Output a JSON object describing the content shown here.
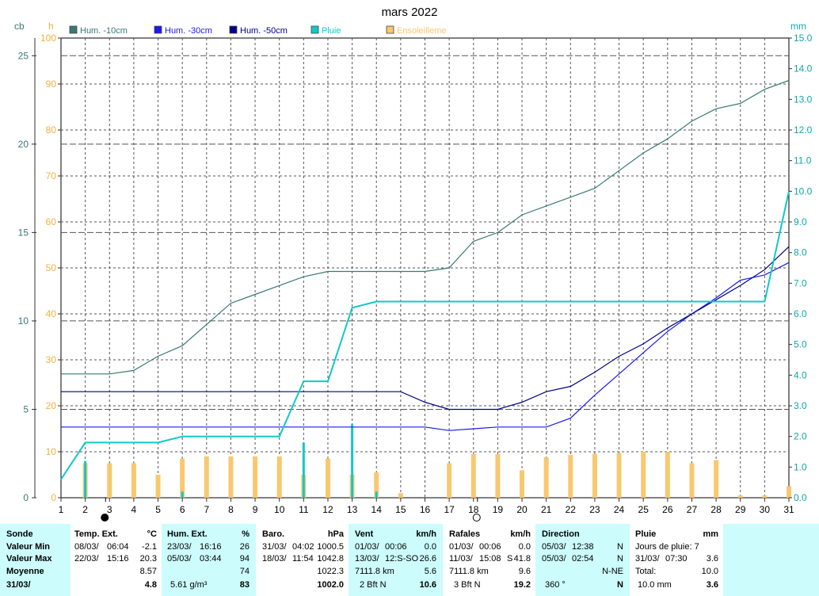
{
  "chart_data": {
    "type": "line",
    "title": "mars 2022",
    "x": [
      1,
      2,
      3,
      4,
      5,
      6,
      7,
      8,
      9,
      10,
      11,
      12,
      13,
      14,
      15,
      16,
      17,
      18,
      19,
      20,
      21,
      22,
      23,
      24,
      25,
      26,
      27,
      28,
      29,
      30,
      31
    ],
    "x_ticks": [
      "1",
      "2",
      "3",
      "4",
      "5",
      "6",
      "7",
      "8",
      "9",
      "10",
      "11",
      "12",
      "13",
      "14",
      "15",
      "16",
      "17",
      "18",
      "19",
      "20",
      "21",
      "22",
      "23",
      "24",
      "25",
      "26",
      "27",
      "28",
      "29",
      "30",
      "31"
    ],
    "left_axis_cb": {
      "label": "cb",
      "ticks": [
        "0",
        "5",
        "10",
        "15",
        "20",
        "25"
      ],
      "ylim": [
        0,
        26
      ]
    },
    "left_axis_h": {
      "label": "h",
      "ticks": [
        "0",
        "10",
        "20",
        "30",
        "40",
        "50",
        "60",
        "70",
        "80",
        "90",
        "100"
      ],
      "ylim": [
        0,
        100
      ]
    },
    "right_axis_mm": {
      "label": "mm",
      "ticks": [
        "0.0",
        "1.0",
        "2.0",
        "3.0",
        "4.0",
        "5.0",
        "6.0",
        "7.0",
        "8.0",
        "9.0",
        "10.0",
        "11.0",
        "12.0",
        "13.0",
        "14.0",
        "15.0"
      ],
      "ylim": [
        0,
        15
      ]
    },
    "series": [
      {
        "name": "Hum. -10cm",
        "axis": "cb",
        "color": "#3a7a72",
        "values": [
          7.0,
          7.0,
          7.0,
          7.2,
          8.0,
          8.6,
          9.8,
          11.0,
          11.5,
          12.0,
          12.5,
          12.8,
          12.8,
          12.8,
          12.8,
          12.8,
          13.0,
          14.5,
          15.0,
          16.0,
          16.5,
          17.0,
          17.5,
          18.5,
          19.5,
          20.3,
          21.3,
          22.0,
          22.3,
          23.1,
          23.6
        ]
      },
      {
        "name": "Hum. -30cm",
        "axis": "cb",
        "color": "#1a1aee",
        "values": [
          4.0,
          4.0,
          4.0,
          4.0,
          4.0,
          4.0,
          4.0,
          4.0,
          4.0,
          4.0,
          4.0,
          4.0,
          4.0,
          4.0,
          4.0,
          4.0,
          3.8,
          3.9,
          4.0,
          4.0,
          4.0,
          4.5,
          5.8,
          7.0,
          8.2,
          9.4,
          10.4,
          11.3,
          12.3,
          12.6,
          13.3
        ]
      },
      {
        "name": "Hum. -50cm",
        "axis": "cb",
        "color": "#000088",
        "values": [
          6.0,
          6.0,
          6.0,
          6.0,
          6.0,
          6.0,
          6.0,
          6.0,
          6.0,
          6.0,
          6.0,
          6.0,
          6.0,
          6.0,
          6.0,
          5.4,
          5.0,
          5.0,
          5.0,
          5.4,
          6.0,
          6.3,
          7.1,
          8.0,
          8.7,
          9.6,
          10.4,
          11.2,
          12.0,
          12.9,
          14.2
        ]
      },
      {
        "name": "Pluie",
        "axis": "mm",
        "color": "#11c8c8",
        "values": [
          0.6,
          1.8,
          1.8,
          1.8,
          1.8,
          2.0,
          2.0,
          2.0,
          2.0,
          2.0,
          3.8,
          3.8,
          6.2,
          6.4,
          6.4,
          6.4,
          6.4,
          6.4,
          6.4,
          6.4,
          6.4,
          6.4,
          6.4,
          6.4,
          6.4,
          6.4,
          6.4,
          6.4,
          6.4,
          6.4,
          10.0
        ]
      }
    ],
    "rain_bars": {
      "axis": "mm",
      "color": "#11c8c8",
      "x": [
        2,
        6,
        11,
        13,
        14
      ],
      "values": [
        1.2,
        0.2,
        1.8,
        2.4,
        0.2
      ]
    },
    "sunshine": {
      "name": "Ensoleilleme",
      "axis": "h",
      "color": "#f8c870",
      "x": [
        1,
        2,
        3,
        4,
        5,
        6,
        7,
        8,
        9,
        10,
        11,
        12,
        13,
        14,
        15,
        16,
        17,
        18,
        19,
        20,
        21,
        22,
        23,
        24,
        25,
        26,
        27,
        28,
        29,
        30,
        31
      ],
      "values": [
        0,
        7.5,
        7.5,
        7.5,
        5,
        8.5,
        9,
        9,
        9,
        9,
        5,
        8.5,
        5,
        5.5,
        1,
        0,
        7.5,
        9.5,
        9.5,
        6,
        8.8,
        9.3,
        9.5,
        9.7,
        10,
        10,
        7.5,
        8.2,
        0.5,
        0.5,
        2.5
      ]
    },
    "moon_markers": [
      {
        "x": 3,
        "symbol": "●"
      },
      {
        "x": 18,
        "symbol": "○"
      }
    ],
    "grid": true,
    "legend_placement": "top"
  },
  "legend": [
    {
      "label": "Hum. -10cm",
      "color": "#3a7a72"
    },
    {
      "label": "Hum. -30cm",
      "color": "#1a1aee"
    },
    {
      "label": "Hum. -50cm",
      "color": "#000088"
    },
    {
      "label": "Pluie",
      "color": "#11c8c8"
    },
    {
      "label": "Ensoleilleme",
      "color": "#f8c870"
    }
  ],
  "stats": {
    "labels": {
      "sonde": "Sonde",
      "min": "Valeur Min",
      "max": "Valeur Max",
      "moyenne": "Moyenne",
      "date": "31/03/"
    },
    "temp": {
      "title": "Temp. Ext.",
      "unit": "°C",
      "min_date": "08/03/",
      "min_time": "06:04",
      "min_val": "-2.1",
      "max_date": "22/03/",
      "max_time": "15:16",
      "max_val": "20.3",
      "avg": "8.57",
      "current": "4.8"
    },
    "hum": {
      "title": "Hum. Ext.",
      "unit": "%",
      "min_date": "23/03/",
      "min_time": "16:16",
      "min_val": "26",
      "max_date": "05/03/",
      "max_time": "03:44",
      "max_val": "94",
      "avg": "74",
      "extra": "5.61 g/m³",
      "current": "83"
    },
    "baro": {
      "title": "Baro.",
      "unit": "hPa",
      "min_date": "31/03/",
      "min_time": "04:02",
      "min_val": "1000.5",
      "max_date": "18/03/",
      "max_time": "11:54",
      "max_val": "1042.8",
      "avg": "1022.3",
      "current": "1002.0"
    },
    "vent": {
      "title": "Vent",
      "unit": "km/h",
      "min_date": "01/03/",
      "min_time": "00:06",
      "min_val": "0.0",
      "max_date": "13/03/",
      "max_time": "12:S-SO",
      "max_val": "26.6",
      "avg_dist": "7111.8 km",
      "avg": "5.6",
      "current_desc": "2 Bft N",
      "current": "10.6"
    },
    "rafales": {
      "title": "Rafales",
      "unit": "km/h",
      "min_date": "01/03/",
      "min_time": "00:06",
      "min_val": "0.0",
      "max_date": "11/03/",
      "max_time": "15:08",
      "max_dir": "S",
      "max_val": "41.8",
      "avg_dist": "7111.8 km",
      "avg": "9.6",
      "current_desc": "3 Bft N",
      "current": "19.2"
    },
    "direction": {
      "title": "Direction",
      "min_date": "05/03/",
      "min_time": "12:38",
      "min_val": "N",
      "max_date": "05/03/",
      "max_time": "02:54",
      "max_val": "N",
      "avg": "N-NE",
      "current_deg": "360 °",
      "current": "N"
    },
    "pluie": {
      "title": "Pluie",
      "unit": "mm",
      "days_label": "Jours de pluie: 7",
      "max_date": "31/03/",
      "max_time": "07:30",
      "max_val": "3.6",
      "total_label": "Total:",
      "total": "10.0",
      "current_desc": "10.0 mm",
      "current": "3.6"
    }
  }
}
